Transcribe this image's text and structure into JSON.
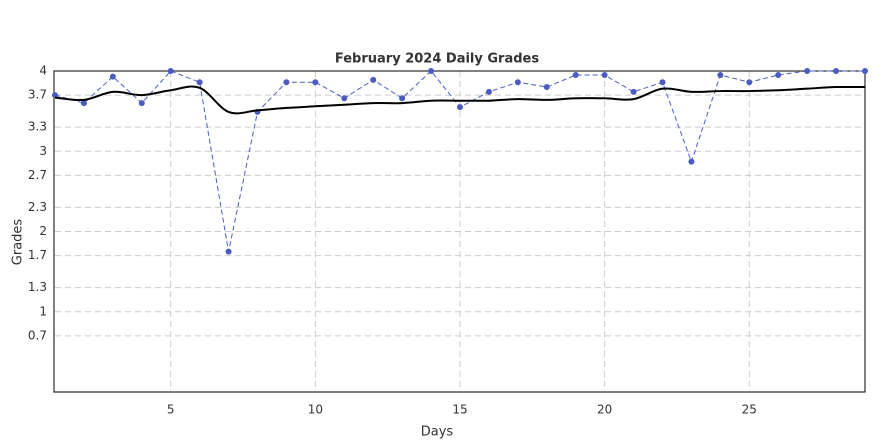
{
  "chart_data": {
    "type": "line",
    "title": "February 2024 Daily Grades",
    "xlabel": "Days",
    "ylabel": "Grades",
    "x": [
      1,
      2,
      3,
      4,
      5,
      6,
      7,
      8,
      9,
      10,
      11,
      12,
      13,
      14,
      15,
      16,
      17,
      18,
      19,
      20,
      21,
      22,
      23,
      24,
      25,
      26,
      27,
      28,
      29
    ],
    "series": [
      {
        "color": "#4a5cc0",
        "style": "dashed-markers",
        "values": [
          3.7,
          3.6,
          3.93,
          3.6,
          4.0,
          3.86,
          1.75,
          3.49,
          3.86,
          3.86,
          3.66,
          3.89,
          3.66,
          4.0,
          3.55,
          3.74,
          3.86,
          3.8,
          3.95,
          3.95,
          3.74,
          3.86,
          2.87,
          3.95,
          3.86,
          3.95,
          4.0,
          4.0,
          4.0
        ]
      },
      {
        "color": "#000000",
        "style": "smooth",
        "values": [
          3.67,
          3.64,
          3.74,
          3.7,
          3.76,
          3.79,
          3.49,
          3.51,
          3.54,
          3.56,
          3.58,
          3.6,
          3.6,
          3.63,
          3.63,
          3.63,
          3.65,
          3.64,
          3.66,
          3.66,
          3.65,
          3.78,
          3.74,
          3.75,
          3.75,
          3.76,
          3.78,
          3.8,
          3.8
        ]
      }
    ],
    "xlim": [
      1,
      29
    ],
    "xticks": [
      5,
      10,
      15,
      20,
      25
    ],
    "ylim": [
      0,
      4
    ],
    "yticks": [
      4,
      3.7,
      3.3,
      3,
      2.7,
      2.3,
      2,
      1.7,
      1.3,
      1,
      0.7
    ],
    "grid": true
  }
}
